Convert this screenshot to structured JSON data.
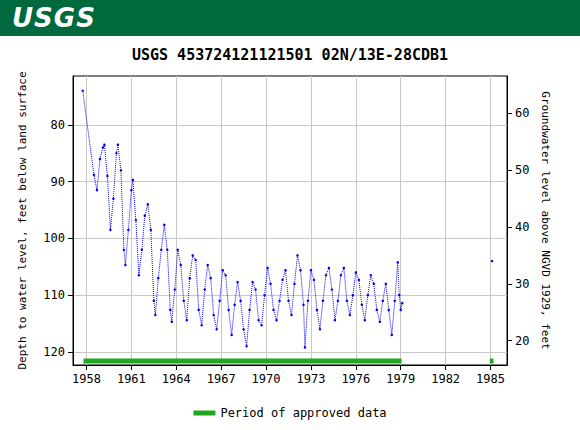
{
  "header": {
    "text": "USGS"
  },
  "chart_data": {
    "type": "line",
    "title": "USGS 453724121121501 02N/13E-28CDB1",
    "ylabel": "Depth to water level, feet below land surface",
    "y2label": "Groundwater level above NGVD 1929, feet",
    "xlim": [
      1957.1,
      1986.1
    ],
    "xticks": [
      1958,
      1961,
      1964,
      1967,
      1970,
      1973,
      1976,
      1979,
      1982,
      1985
    ],
    "ylim": [
      122.3,
      71.4
    ],
    "yticks": [
      80,
      90,
      100,
      110,
      120
    ],
    "y2lim": [
      15.7,
      66.6
    ],
    "y2ticks": [
      20,
      30,
      40,
      50,
      60
    ],
    "grid": true,
    "legend": "bottom",
    "series": [
      {
        "color": "#0000ff",
        "marker": "circle",
        "line_style": "dotted",
        "x": [
          1957.75,
          1958.5,
          1958.7,
          1958.9,
          1959.1,
          1959.2,
          1959.4,
          1959.6,
          1959.8,
          1960.0,
          1960.1,
          1960.3,
          1960.5,
          1960.6,
          1960.8,
          1961.0,
          1961.1,
          1961.3,
          1961.5,
          1961.7,
          1961.9,
          1962.1,
          1962.3,
          1962.5,
          1962.6,
          1962.8,
          1963.0,
          1963.2,
          1963.4,
          1963.6,
          1963.7,
          1963.9,
          1964.1,
          1964.3,
          1964.5,
          1964.7,
          1964.9,
          1965.1,
          1965.3,
          1965.5,
          1965.7,
          1965.9,
          1966.1,
          1966.3,
          1966.5,
          1966.7,
          1966.9,
          1967.1,
          1967.3,
          1967.5,
          1967.7,
          1967.9,
          1968.1,
          1968.3,
          1968.5,
          1968.7,
          1968.9,
          1969.1,
          1969.3,
          1969.5,
          1969.7,
          1969.9,
          1970.1,
          1970.3,
          1970.5,
          1970.7,
          1970.9,
          1971.1,
          1971.3,
          1971.5,
          1971.7,
          1971.9,
          1972.1,
          1972.3,
          1972.5,
          1972.6,
          1972.8,
          1973.0,
          1973.2,
          1973.4,
          1973.6,
          1973.8,
          1974.0,
          1974.2,
          1974.4,
          1974.6,
          1974.8,
          1975.0,
          1975.2,
          1975.4,
          1975.6,
          1975.8,
          1976.0,
          1976.2,
          1976.4,
          1976.6,
          1976.8,
          1977.0,
          1977.2,
          1977.4,
          1977.6,
          1977.8,
          1978.0,
          1978.2,
          1978.4,
          1978.6,
          1978.8,
          1978.9,
          1979.0,
          1979.1,
          1982.0,
          1985.1
        ],
        "values": [
          74,
          88.8,
          91.5,
          86,
          84,
          83.5,
          89,
          98.5,
          93,
          85,
          83.5,
          88,
          102,
          104.7,
          98.5,
          91.5,
          89.7,
          96.8,
          106.5,
          102,
          96,
          94,
          98.5,
          111,
          113.5,
          107,
          102,
          97.6,
          102,
          112.6,
          114.7,
          109,
          102,
          104.7,
          111,
          114.4,
          107,
          103,
          103.8,
          112.6,
          115.3,
          109,
          104.7,
          107,
          113.5,
          116,
          111,
          105.6,
          106.5,
          112.6,
          117,
          111.7,
          107.7,
          111,
          116,
          119,
          112.6,
          107.7,
          109,
          114.4,
          115.3,
          110,
          105.2,
          108,
          112.6,
          114.4,
          111,
          107.3,
          105.6,
          111,
          113.5,
          108,
          103,
          105.6,
          111.7,
          119.2,
          111,
          105.6,
          107.3,
          112.6,
          116,
          111,
          106.5,
          105.2,
          109,
          114.4,
          111,
          106.5,
          105.2,
          111,
          113.5,
          110,
          106,
          107.3,
          111.7,
          114.4,
          110,
          106.5,
          108,
          112.6,
          114.7,
          111,
          108,
          112.6,
          117,
          111,
          104.2,
          110,
          112.6,
          111.4,
          null,
          104
        ]
      },
      {
        "name": "Period of approved data",
        "color": "#22a722",
        "marker": "none",
        "line_style": "solid",
        "x": [
          1957.8,
          1979.05,
          1982.0,
          1984.95,
          1985.2
        ],
        "values": [
          121.6,
          121.6,
          null,
          121.6,
          121.6
        ]
      }
    ]
  }
}
